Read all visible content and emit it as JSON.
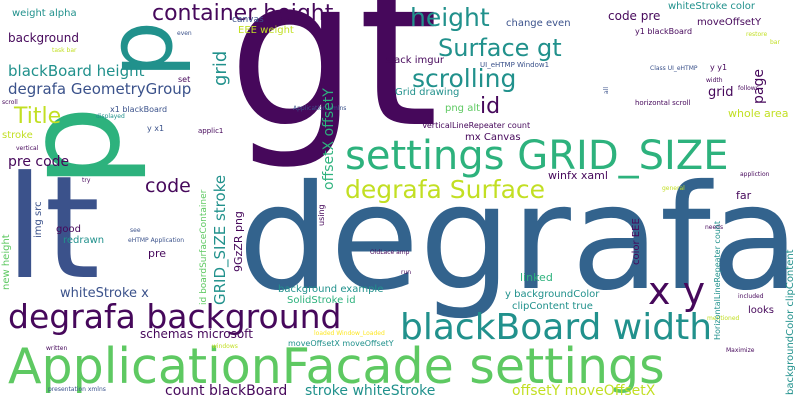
{
  "palette": {
    "purple": "#46085b",
    "indigo": "#3b528b",
    "blue": "#33638d",
    "teal": "#21918c",
    "green": "#2db27d",
    "lime": "#5ec962",
    "yellow": "#c2df23",
    "gold": "#fde725"
  },
  "words": [
    "gt",
    "lt",
    "degrafa",
    "p",
    "ApplicationFacade settings",
    "blackBoard width",
    "settings GRID_SIZE",
    "degrafa background",
    "degrafa Surface",
    "x y",
    "container height",
    "height",
    "Surface gt",
    "scrolling",
    "Title",
    "id",
    "blackBoard height",
    "degrafa GeometryGroup",
    "code",
    "pre code",
    "whiteStroke x",
    "count blackBoard",
    "stroke whiteStroke",
    "offsetY moveOffsetX",
    "background",
    "weight alpha",
    "grid",
    "GRID_SIZE stroke",
    "offsetX offsetY",
    "XAML",
    "page",
    "whole area",
    "whiteStroke color",
    "moveOffsetY",
    "code pre",
    "change even",
    "EEE weight",
    "canvas",
    "Grid drawing",
    "png alt",
    "stack imgur",
    "mx Canvas",
    "winfx xaml",
    "y backgroundColor",
    "clipContent true",
    "linked",
    "schemas microsoft",
    "background example",
    "SolidStroke id",
    "9GzZR png",
    "img src",
    "redrawn",
    "pre",
    "good",
    "new height",
    "far",
    "looks",
    "color EEE",
    "backgroundColor clipContent",
    "moveOffsetX moveOffsetY",
    "HorizontalLineRepeater count",
    "VerticalLineRepeater count",
    "id boardSurfaceContainer",
    "UI_eHTMP Window1",
    "y1 blackBoard",
    "x1 blackBoard",
    "y x1",
    "y y1",
    "set",
    "stroke",
    "scroll",
    "task bar",
    "displayed",
    "vertical",
    "try",
    "applic1",
    "Application xmlns",
    "even",
    "restore",
    "bar",
    "horizontal scroll",
    "width",
    "follows",
    "appliction",
    "general",
    "needs",
    "included",
    "mentioned",
    "Maximize",
    "written",
    "windows",
    "presentation xmlns",
    "OldLace amp",
    "run",
    "loaded Window_Loaded",
    "eHTMP Application",
    "see",
    "using",
    "Class UI_eHTMP",
    "all"
  ]
}
